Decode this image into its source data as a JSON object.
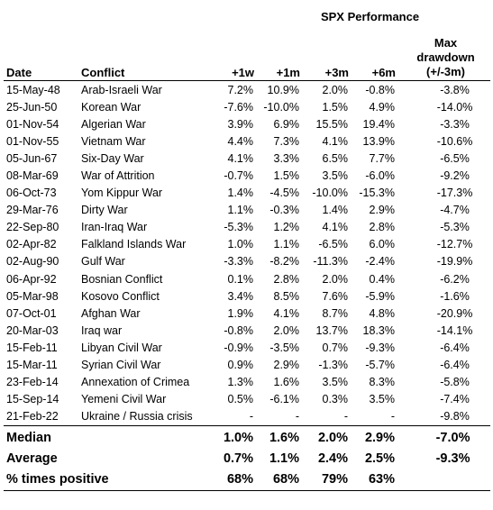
{
  "header": {
    "group_label": "SPX Performance",
    "columns": {
      "date": "Date",
      "conflict": "Conflict",
      "w1": "+1w",
      "m1": "+1m",
      "m3": "+3m",
      "m6": "+6m",
      "dd_line1": "Max",
      "dd_line2": "drawdown",
      "dd_line3": "(+/-3m)"
    }
  },
  "rows": [
    {
      "date": "15-May-48",
      "conflict": "Arab-Israeli War",
      "w1": "7.2%",
      "m1": "10.9%",
      "m3": "2.0%",
      "m6": "-0.8%",
      "dd": "-3.8%"
    },
    {
      "date": "25-Jun-50",
      "conflict": "Korean War",
      "w1": "-7.6%",
      "m1": "-10.0%",
      "m3": "1.5%",
      "m6": "4.9%",
      "dd": "-14.0%"
    },
    {
      "date": "01-Nov-54",
      "conflict": "Algerian War",
      "w1": "3.9%",
      "m1": "6.9%",
      "m3": "15.5%",
      "m6": "19.4%",
      "dd": "-3.3%"
    },
    {
      "date": "01-Nov-55",
      "conflict": "Vietnam War",
      "w1": "4.4%",
      "m1": "7.3%",
      "m3": "4.1%",
      "m6": "13.9%",
      "dd": "-10.6%"
    },
    {
      "date": "05-Jun-67",
      "conflict": "Six-Day War",
      "w1": "4.1%",
      "m1": "3.3%",
      "m3": "6.5%",
      "m6": "7.7%",
      "dd": "-6.5%"
    },
    {
      "date": "08-Mar-69",
      "conflict": "War of Attrition",
      "w1": "-0.7%",
      "m1": "1.5%",
      "m3": "3.5%",
      "m6": "-6.0%",
      "dd": "-9.2%"
    },
    {
      "date": "06-Oct-73",
      "conflict": "Yom Kippur War",
      "w1": "1.4%",
      "m1": "-4.5%",
      "m3": "-10.0%",
      "m6": "-15.3%",
      "dd": "-17.3%"
    },
    {
      "date": "29-Mar-76",
      "conflict": "Dirty War",
      "w1": "1.1%",
      "m1": "-0.3%",
      "m3": "1.4%",
      "m6": "2.9%",
      "dd": "-4.7%"
    },
    {
      "date": "22-Sep-80",
      "conflict": "Iran-Iraq War",
      "w1": "-5.3%",
      "m1": "1.2%",
      "m3": "4.1%",
      "m6": "2.8%",
      "dd": "-5.3%"
    },
    {
      "date": "02-Apr-82",
      "conflict": "Falkland Islands War",
      "w1": "1.0%",
      "m1": "1.1%",
      "m3": "-6.5%",
      "m6": "6.0%",
      "dd": "-12.7%"
    },
    {
      "date": "02-Aug-90",
      "conflict": "Gulf War",
      "w1": "-3.3%",
      "m1": "-8.2%",
      "m3": "-11.3%",
      "m6": "-2.4%",
      "dd": "-19.9%"
    },
    {
      "date": "06-Apr-92",
      "conflict": "Bosnian Conflict",
      "w1": "0.1%",
      "m1": "2.8%",
      "m3": "2.0%",
      "m6": "0.4%",
      "dd": "-6.2%"
    },
    {
      "date": "05-Mar-98",
      "conflict": "Kosovo Conflict",
      "w1": "3.4%",
      "m1": "8.5%",
      "m3": "7.6%",
      "m6": "-5.9%",
      "dd": "-1.6%"
    },
    {
      "date": "07-Oct-01",
      "conflict": "Afghan War",
      "w1": "1.9%",
      "m1": "4.1%",
      "m3": "8.7%",
      "m6": "4.8%",
      "dd": "-20.9%"
    },
    {
      "date": "20-Mar-03",
      "conflict": "Iraq war",
      "w1": "-0.8%",
      "m1": "2.0%",
      "m3": "13.7%",
      "m6": "18.3%",
      "dd": "-14.1%"
    },
    {
      "date": "15-Feb-11",
      "conflict": "Libyan Civil War",
      "w1": "-0.9%",
      "m1": "-3.5%",
      "m3": "0.7%",
      "m6": "-9.3%",
      "dd": "-6.4%"
    },
    {
      "date": "15-Mar-11",
      "conflict": "Syrian Civil War",
      "w1": "0.9%",
      "m1": "2.9%",
      "m3": "-1.3%",
      "m6": "-5.7%",
      "dd": "-6.4%"
    },
    {
      "date": "23-Feb-14",
      "conflict": "Annexation of Crimea",
      "w1": "1.3%",
      "m1": "1.6%",
      "m3": "3.5%",
      "m6": "8.3%",
      "dd": "-5.8%"
    },
    {
      "date": "15-Sep-14",
      "conflict": "Yemeni Civil War",
      "w1": "0.5%",
      "m1": "-6.1%",
      "m3": "0.3%",
      "m6": "3.5%",
      "dd": "-7.4%"
    },
    {
      "date": "21-Feb-22",
      "conflict": "Ukraine / Russia crisis",
      "w1": "-",
      "m1": "-",
      "m3": "-",
      "m6": "-",
      "dd": "-9.8%"
    }
  ],
  "summary": [
    {
      "label": "Median",
      "w1": "1.0%",
      "m1": "1.6%",
      "m3": "2.0%",
      "m6": "2.9%",
      "dd": "-7.0%"
    },
    {
      "label": "Average",
      "w1": "0.7%",
      "m1": "1.1%",
      "m3": "2.4%",
      "m6": "2.5%",
      "dd": "-9.3%"
    },
    {
      "label": "% times positive",
      "w1": "68%",
      "m1": "68%",
      "m3": "79%",
      "m6": "63%",
      "dd": ""
    }
  ]
}
